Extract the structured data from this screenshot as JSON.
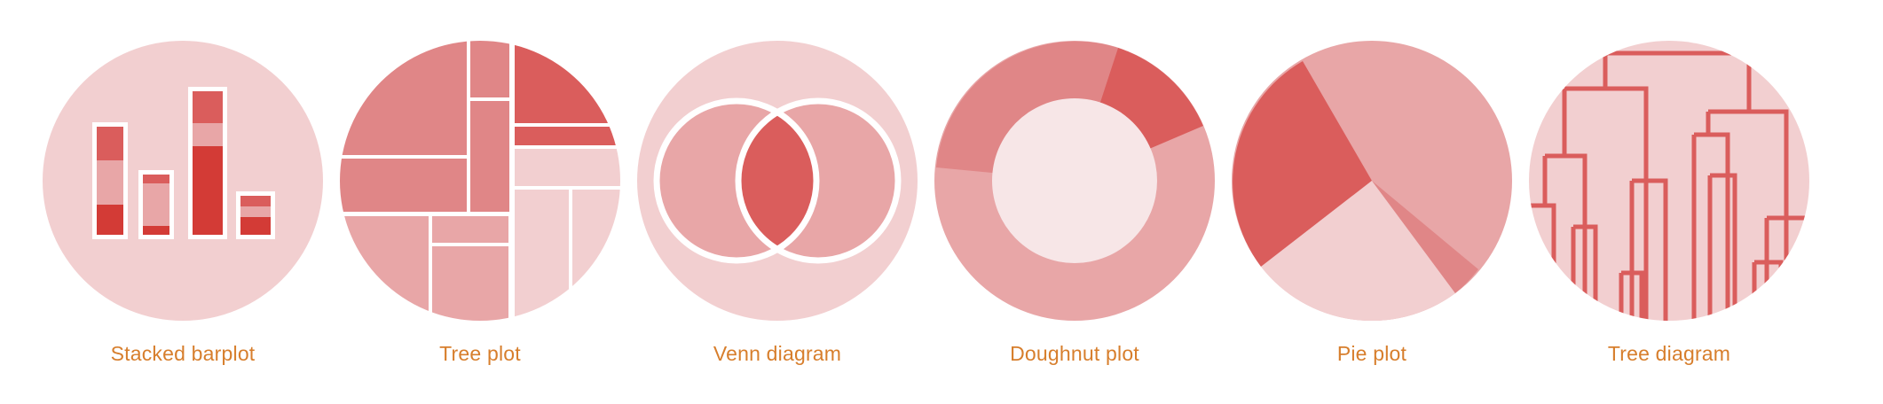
{
  "colors": {
    "circle_bg": "#f2cfd0",
    "light": "#e8a6a7",
    "medium": "#e08687",
    "dark": "#da5d5c",
    "darkest": "#d33b36",
    "pale": "#f7e6e7",
    "white": "#ffffff",
    "label": "#d77e2c"
  },
  "items": [
    {
      "label": "Stacked barplot",
      "icon": "stacked-barplot-icon"
    },
    {
      "label": "Tree plot",
      "icon": "treemap-icon"
    },
    {
      "label": "Venn diagram",
      "icon": "venn-diagram-icon"
    },
    {
      "label": "Doughnut plot",
      "icon": "doughnut-chart-icon"
    },
    {
      "label": "Pie plot",
      "icon": "pie-chart-icon"
    },
    {
      "label": "Tree diagram",
      "icon": "dendrogram-icon"
    }
  ]
}
